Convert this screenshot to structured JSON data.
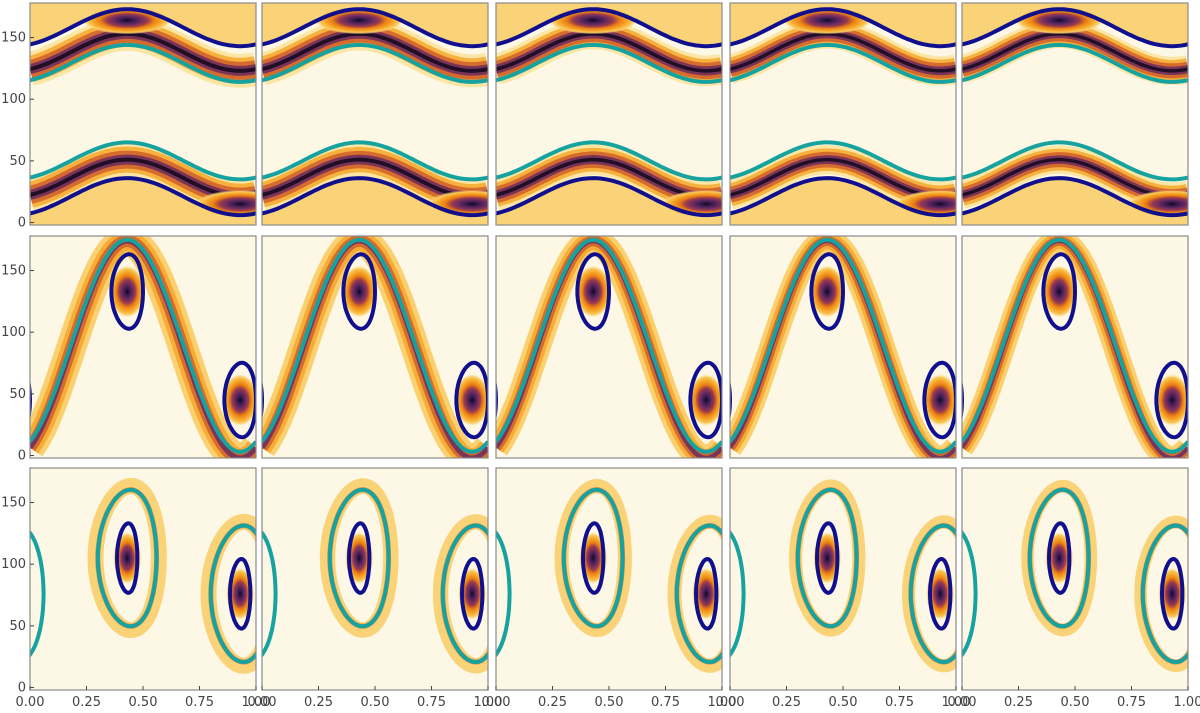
{
  "chart_data": {
    "type": "contour",
    "title": "",
    "xlabel": "",
    "ylabel": "",
    "grid": false,
    "layout": {
      "rows": 3,
      "cols": 5
    },
    "xlim": [
      0,
      1
    ],
    "ylim": [
      -2,
      178
    ],
    "x_ticks": [
      0.0,
      0.25,
      0.5,
      0.75,
      1.0
    ],
    "x_tick_labels": [
      "0.00",
      "0.25",
      "0.50",
      "0.75",
      "1.00"
    ],
    "y_ticks": [
      0,
      50,
      100,
      150
    ],
    "y_tick_labels": [
      "0",
      "50",
      "100",
      "150"
    ],
    "colors": {
      "background": "#fdf8e6",
      "contour_fill": [
        "#fdf8e6",
        "#fbe39a",
        "#f9c95c",
        "#f6a72a",
        "#ec8012",
        "#cf5f2a",
        "#9a3b4d",
        "#6a2a5f",
        "#3b1c52",
        "#12081e"
      ],
      "separatrix_inner": "#10108f",
      "separatrix_outer": "#16a3a0"
    },
    "rows": [
      {
        "regime": "open-bands",
        "centers": [
          {
            "x": 0.43,
            "y": 164
          },
          {
            "x": 0.93,
            "y": 15
          }
        ],
        "navy_upper": {
          "mid": 158,
          "amp": 15
        },
        "navy_lower": {
          "mid": 21,
          "amp": 15
        },
        "teal_upper": {
          "mid": 129,
          "amp": 15
        },
        "teal_lower": {
          "mid": 50,
          "amp": 15
        }
      },
      {
        "regime": "cat-eye",
        "centers": [
          {
            "x": 0.43,
            "y": 133
          },
          {
            "x": 0.93,
            "y": 45
          }
        ],
        "navy_loop": {
          "rx": 0.07,
          "ry": 30
        },
        "teal_curve": {
          "mid": 89,
          "amp": 86
        }
      },
      {
        "regime": "closed-vortices",
        "centers": [
          {
            "x": 0.43,
            "y": 105
          },
          {
            "x": 0.93,
            "y": 76
          }
        ],
        "navy_loop": {
          "rx": 0.045,
          "ry": 28
        },
        "teal_loop": {
          "rx": 0.13,
          "ry": 55
        }
      }
    ],
    "columns_filament_strength": [
      1.0,
      0.9,
      0.7,
      0.55,
      0.45
    ]
  }
}
